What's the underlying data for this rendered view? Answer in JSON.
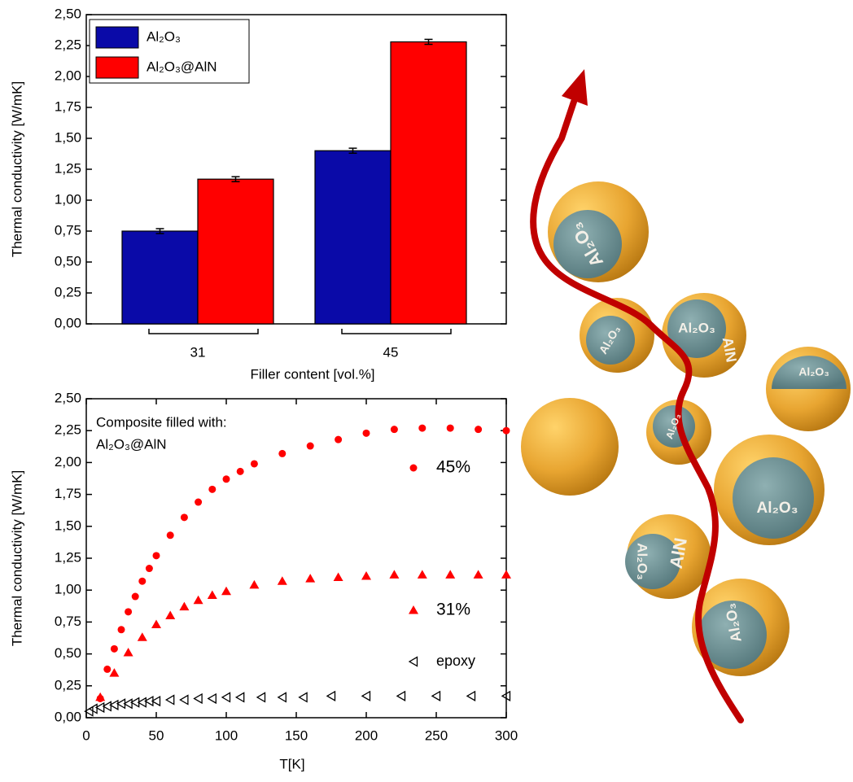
{
  "chart_data": [
    {
      "type": "bar",
      "y_label": "Thermal conductivity [W/mK]",
      "x_label": "Filler content [vol.%]",
      "categories": [
        "31",
        "45"
      ],
      "series": [
        {
          "name": "Al₂O₃",
          "color": "#0a0aa8",
          "values": [
            0.75,
            1.4
          ],
          "errors": [
            0.02,
            0.02
          ]
        },
        {
          "name": "Al₂O₃@AlN",
          "color": "#ff0000",
          "values": [
            1.17,
            2.28
          ],
          "errors": [
            0.02,
            0.02
          ]
        }
      ],
      "ylim": [
        0,
        2.5
      ],
      "yticks": [
        {
          "value": 0,
          "label": "0,00"
        },
        {
          "value": 0.25,
          "label": "0,25"
        },
        {
          "value": 0.5,
          "label": "0,50"
        },
        {
          "value": 0.75,
          "label": "0,75"
        },
        {
          "value": 1,
          "label": "1,00"
        },
        {
          "value": 1.25,
          "label": "1,25"
        },
        {
          "value": 1.5,
          "label": "1,50"
        },
        {
          "value": 1.75,
          "label": "1,75"
        },
        {
          "value": 2,
          "label": "2,00"
        },
        {
          "value": 2.25,
          "label": "2,25"
        },
        {
          "value": 2.5,
          "label": "2,50"
        }
      ],
      "legend": "top-left",
      "grid": false
    },
    {
      "type": "scatter",
      "y_label": "Thermal conductivity [W/mK]",
      "x_label": "T[K]",
      "annotations": [
        "Composite filled with:",
        "Al₂O₃@AlN"
      ],
      "series": [
        {
          "name": "45%",
          "color": "#ff0000",
          "marker": "circle",
          "x": [
            10,
            15,
            20,
            25,
            30,
            35,
            40,
            45,
            50,
            60,
            70,
            80,
            90,
            100,
            110,
            120,
            140,
            160,
            180,
            200,
            220,
            240,
            260,
            280,
            300
          ],
          "values": [
            0.15,
            0.38,
            0.54,
            0.69,
            0.83,
            0.95,
            1.07,
            1.17,
            1.27,
            1.43,
            1.57,
            1.69,
            1.79,
            1.87,
            1.93,
            1.99,
            2.07,
            2.13,
            2.18,
            2.23,
            2.26,
            2.27,
            2.27,
            2.26,
            2.25
          ]
        },
        {
          "name": "31%",
          "color": "#ff0000",
          "marker": "triangle",
          "x": [
            10,
            20,
            30,
            40,
            50,
            60,
            70,
            80,
            90,
            100,
            120,
            140,
            160,
            180,
            200,
            220,
            240,
            260,
            280,
            300
          ],
          "values": [
            0.16,
            0.35,
            0.51,
            0.63,
            0.73,
            0.8,
            0.87,
            0.92,
            0.96,
            0.99,
            1.04,
            1.07,
            1.09,
            1.1,
            1.11,
            1.12,
            1.12,
            1.12,
            1.12,
            1.12
          ]
        },
        {
          "name": "epoxy",
          "color": "#000000",
          "marker": "triangle-left-open",
          "x": [
            2,
            5,
            10,
            15,
            20,
            25,
            30,
            35,
            40,
            45,
            50,
            60,
            70,
            80,
            90,
            100,
            110,
            125,
            140,
            155,
            175,
            200,
            225,
            250,
            275,
            300
          ],
          "values": [
            0.05,
            0.07,
            0.08,
            0.09,
            0.1,
            0.11,
            0.11,
            0.12,
            0.12,
            0.13,
            0.13,
            0.14,
            0.14,
            0.15,
            0.15,
            0.16,
            0.16,
            0.16,
            0.16,
            0.16,
            0.17,
            0.17,
            0.17,
            0.17,
            0.17,
            0.17
          ]
        }
      ],
      "xlim": [
        0,
        300
      ],
      "xticks": [
        0,
        50,
        100,
        150,
        200,
        250,
        300
      ],
      "ylim": [
        0,
        2.5
      ],
      "yticks": [
        {
          "value": 0,
          "label": "0,00"
        },
        {
          "value": 0.25,
          "label": "0,25"
        },
        {
          "value": 0.5,
          "label": "0,50"
        },
        {
          "value": 0.75,
          "label": "0,75"
        },
        {
          "value": 1,
          "label": "1,00"
        },
        {
          "value": 1.25,
          "label": "1,25"
        },
        {
          "value": 1.5,
          "label": "1,50"
        },
        {
          "value": 1.75,
          "label": "1,75"
        },
        {
          "value": 2,
          "label": "2,00"
        },
        {
          "value": 2.25,
          "label": "2,25"
        },
        {
          "value": 2.5,
          "label": "2,50"
        }
      ],
      "grid": false
    }
  ],
  "illustration": {
    "labels": [
      "Al₂O₃",
      "Al₂O₃",
      "Al₂O₃",
      "Al₂O₃",
      "Al₂O₃",
      "Al₂O₃",
      "AlN",
      "AlN",
      "Al₂O₃",
      "Al₂O₃"
    ]
  }
}
